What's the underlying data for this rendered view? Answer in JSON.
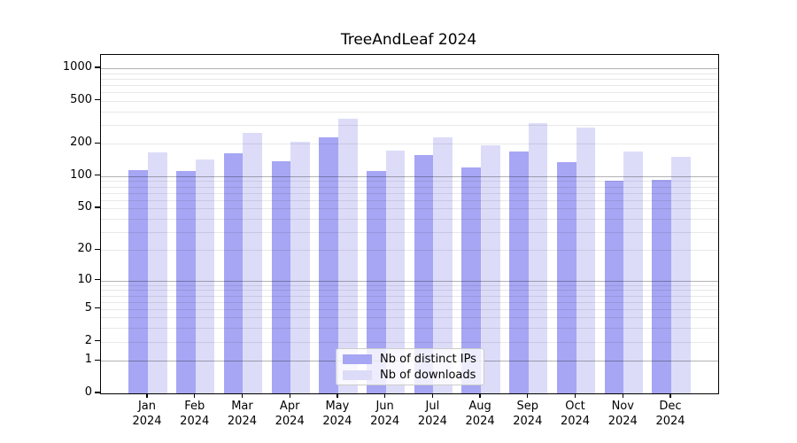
{
  "figure": {
    "title": "TreeAndLeaf 2024"
  },
  "legend": {
    "items": [
      {
        "label": "Nb of distinct IPs",
        "color": "#a6a6f4"
      },
      {
        "label": "Nb of downloads",
        "color": "#dcdcf9"
      }
    ]
  },
  "chart_data": {
    "type": "bar",
    "title": "TreeAndLeaf 2024",
    "categories": [
      "Jan 2024",
      "Feb 2024",
      "Mar 2024",
      "Apr 2024",
      "May 2024",
      "Jun 2024",
      "Jul 2024",
      "Aug 2024",
      "Sep 2024",
      "Oct 2024",
      "Nov 2024",
      "Dec 2024"
    ],
    "x_months": [
      "Jan",
      "Feb",
      "Mar",
      "Apr",
      "May",
      "Jun",
      "Jul",
      "Aug",
      "Sep",
      "Oct",
      "Nov",
      "Dec"
    ],
    "x_year": "2024",
    "series": [
      {
        "name": "Nb of distinct IPs",
        "color": "#a6a6f4",
        "values": [
          113,
          111,
          164,
          138,
          228,
          112,
          158,
          120,
          168,
          136,
          90,
          93
        ]
      },
      {
        "name": "Nb of downloads",
        "color": "#dcdcf9",
        "values": [
          166,
          144,
          252,
          210,
          338,
          172,
          228,
          194,
          309,
          280,
          169,
          150
        ]
      }
    ],
    "yscale": "log1p",
    "yticks": [
      1000,
      500,
      200,
      100,
      50,
      20,
      10,
      5,
      2,
      1,
      0
    ],
    "major_grid_values": [
      1,
      10,
      100,
      1000
    ],
    "minor_grid_step_decades": [
      1,
      10,
      100
    ],
    "ylim": [
      0,
      1325
    ],
    "grid": true,
    "legend_position": "lower center",
    "grid_minor_color": "rgba(0,0,0,0.09)",
    "grid_major_color": "rgba(0,0,0,0.30)",
    "axis_color": "#000000"
  }
}
